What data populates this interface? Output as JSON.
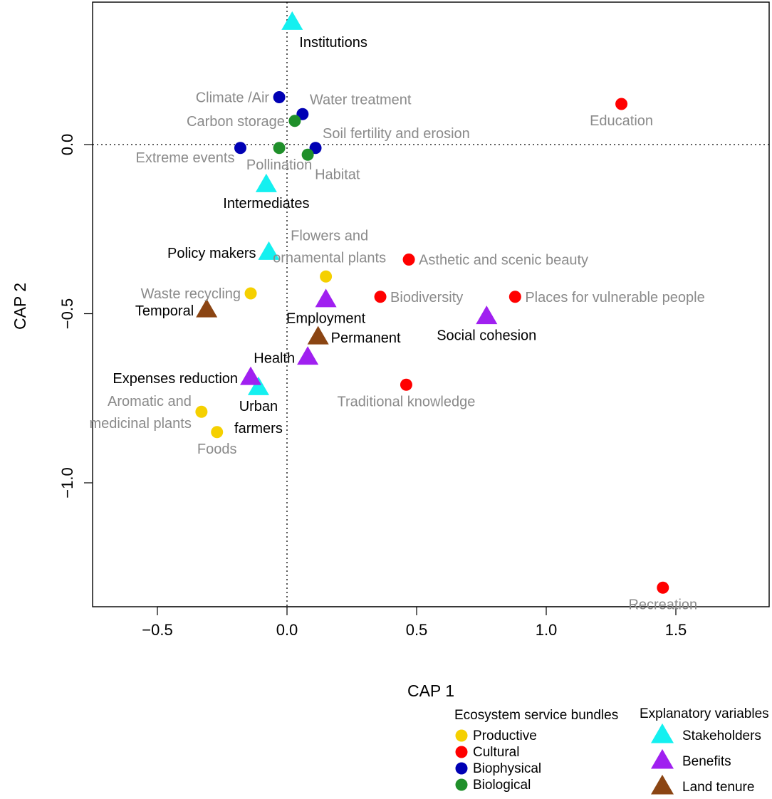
{
  "chart_data": {
    "type": "scatter",
    "xlabel": "CAP 1",
    "ylabel": "CAP 2",
    "xlim": [
      -0.75,
      1.86
    ],
    "ylim": [
      -1.37,
      0.39
    ],
    "xticks": [
      -0.5,
      0.0,
      0.5,
      1.0,
      1.5
    ],
    "xtick_labels": [
      "−0.5",
      "0.0",
      "0.5",
      "1.0",
      "1.5"
    ],
    "yticks": [
      0.0,
      -0.5,
      -1.0
    ],
    "ytick_labels": [
      "0.0",
      "−0.5",
      "−1.0"
    ],
    "reference_lines": {
      "x": 0,
      "y": 0,
      "style": "dotted"
    },
    "groups": {
      "Productive": "#f5d000",
      "Cultural": "#ff0000",
      "Biophysical": "#0000b4",
      "Biological": "#1f8f2a",
      "Stakeholders": "#14f0f0",
      "Benefits": "#a020f0",
      "Land tenure": "#8b4513"
    },
    "points": [
      {
        "label": "Education",
        "x": 1.29,
        "y": 0.12,
        "group": "Cultural",
        "shape": "circle",
        "label_lines": [
          "Education"
        ],
        "label_pos": "below"
      },
      {
        "label": "Recreation",
        "x": 1.45,
        "y": -1.31,
        "group": "Cultural",
        "shape": "circle",
        "label_lines": [
          "Recreation"
        ],
        "label_pos": "below"
      },
      {
        "label": "Asthetic and scenic beauty",
        "x": 0.47,
        "y": -0.34,
        "group": "Cultural",
        "shape": "circle",
        "label_lines": [
          "Asthetic and scenic beauty"
        ],
        "label_pos": "right"
      },
      {
        "label": "Biodiversity",
        "x": 0.36,
        "y": -0.45,
        "group": "Cultural",
        "shape": "circle",
        "label_lines": [
          "Biodiversity"
        ],
        "label_pos": "right"
      },
      {
        "label": "Places for vulnerable people",
        "x": 0.88,
        "y": -0.45,
        "group": "Cultural",
        "shape": "circle",
        "label_lines": [
          "Places for vulnerable people"
        ],
        "label_pos": "right"
      },
      {
        "label": "Traditional knowledge",
        "x": 0.46,
        "y": -0.71,
        "group": "Cultural",
        "shape": "circle",
        "label_lines": [
          "Traditional knowledge"
        ],
        "label_pos": "below"
      },
      {
        "label": "Climate /Air",
        "x": -0.03,
        "y": 0.14,
        "group": "Biophysical",
        "shape": "circle",
        "label_lines": [
          "Climate /Air"
        ],
        "label_pos": "left"
      },
      {
        "label": "Water treatment",
        "x": 0.06,
        "y": 0.09,
        "group": "Biophysical",
        "shape": "circle",
        "label_lines": [
          "Water treatment"
        ],
        "label_pos": "upper-right"
      },
      {
        "label": "Extreme events",
        "x": -0.18,
        "y": -0.01,
        "group": "Biophysical",
        "shape": "circle",
        "label_lines": [
          "Extreme events"
        ],
        "label_pos": "lower-left"
      },
      {
        "label": "Soil fertility and erosion",
        "x": 0.11,
        "y": -0.01,
        "group": "Biophysical",
        "shape": "circle",
        "label_lines": [
          "Soil fertility and erosion"
        ],
        "label_pos": "upper-right"
      },
      {
        "label": "Carbon storage",
        "x": 0.03,
        "y": 0.07,
        "group": "Biological",
        "shape": "circle",
        "label_lines": [
          "Carbon storage"
        ],
        "label_pos": "left"
      },
      {
        "label": "Pollination",
        "x": -0.03,
        "y": -0.01,
        "group": "Biological",
        "shape": "circle",
        "label_lines": [
          "Pollination"
        ],
        "label_pos": "below"
      },
      {
        "label": "Habitat",
        "x": 0.08,
        "y": -0.03,
        "group": "Biological",
        "shape": "circle",
        "label_lines": [
          "Habitat"
        ],
        "label_pos": "lower-right"
      },
      {
        "label": "Flowers and ornamental plants",
        "x": 0.15,
        "y": -0.39,
        "group": "Productive",
        "shape": "circle",
        "label_lines": [
          "Flowers and",
          "ornamental plants"
        ],
        "label_pos": "upper-left"
      },
      {
        "label": "Waste recycling",
        "x": -0.14,
        "y": -0.44,
        "group": "Productive",
        "shape": "circle",
        "label_lines": [
          "Waste recycling"
        ],
        "label_pos": "left"
      },
      {
        "label": "Aromatic and medicinal plants",
        "x": -0.33,
        "y": -0.79,
        "group": "Productive",
        "shape": "circle",
        "label_lines": [
          "Aromatic and",
          "medicinal plants"
        ],
        "label_pos": "left"
      },
      {
        "label": "Foods",
        "x": -0.27,
        "y": -0.85,
        "group": "Productive",
        "shape": "circle",
        "label_lines": [
          "Foods"
        ],
        "label_pos": "below"
      },
      {
        "label": "Institutions",
        "x": 0.02,
        "y": 0.36,
        "group": "Stakeholders",
        "shape": "triangle",
        "label_lines": [
          "Institutions"
        ],
        "label_pos": "lower-right"
      },
      {
        "label": "Intermediates",
        "x": -0.08,
        "y": -0.12,
        "group": "Stakeholders",
        "shape": "triangle",
        "label_lines": [
          "Intermediates"
        ],
        "label_pos": "below"
      },
      {
        "label": "Policy makers",
        "x": -0.07,
        "y": -0.32,
        "group": "Stakeholders",
        "shape": "triangle",
        "label_lines": [
          "Policy makers"
        ],
        "label_pos": "left"
      },
      {
        "label": "Urban farmers",
        "x": -0.11,
        "y": -0.72,
        "group": "Stakeholders",
        "shape": "triangle",
        "label_lines": [
          "Urban",
          "farmers"
        ],
        "label_pos": "below"
      },
      {
        "label": "Employment",
        "x": 0.15,
        "y": -0.46,
        "group": "Benefits",
        "shape": "triangle",
        "label_lines": [
          "Employment"
        ],
        "label_pos": "below"
      },
      {
        "label": "Social cohesion",
        "x": 0.77,
        "y": -0.51,
        "group": "Benefits",
        "shape": "triangle",
        "label_lines": [
          "Social cohesion"
        ],
        "label_pos": "below"
      },
      {
        "label": "Health",
        "x": 0.08,
        "y": -0.63,
        "group": "Benefits",
        "shape": "triangle",
        "label_lines": [
          "Health"
        ],
        "label_pos": "left"
      },
      {
        "label": "Expenses reduction",
        "x": -0.14,
        "y": -0.69,
        "group": "Benefits",
        "shape": "triangle",
        "label_lines": [
          "Expenses reduction"
        ],
        "label_pos": "left"
      },
      {
        "label": "Temporal",
        "x": -0.31,
        "y": -0.49,
        "group": "Land tenure",
        "shape": "triangle",
        "label_lines": [
          "Temporal"
        ],
        "label_pos": "left"
      },
      {
        "label": "Permanent",
        "x": 0.12,
        "y": -0.57,
        "group": "Land tenure",
        "shape": "triangle",
        "label_lines": [
          "Permanent"
        ],
        "label_pos": "right"
      }
    ],
    "legends": [
      {
        "title": "Ecosystem service bundles",
        "placement": "bottom-center",
        "items": [
          {
            "label": "Productive",
            "shape": "circle",
            "group": "Productive"
          },
          {
            "label": "Cultural",
            "shape": "circle",
            "group": "Cultural"
          },
          {
            "label": "Biophysical",
            "shape": "circle",
            "group": "Biophysical"
          },
          {
            "label": "Biological",
            "shape": "circle",
            "group": "Biological"
          }
        ]
      },
      {
        "title": "Explanatory variables",
        "placement": "bottom-right",
        "items": [
          {
            "label": "Stakeholders",
            "shape": "triangle",
            "group": "Stakeholders"
          },
          {
            "label": "Benefits",
            "shape": "triangle",
            "group": "Benefits"
          },
          {
            "label": "Land tenure",
            "shape": "triangle",
            "group": "Land tenure"
          }
        ]
      }
    ]
  }
}
